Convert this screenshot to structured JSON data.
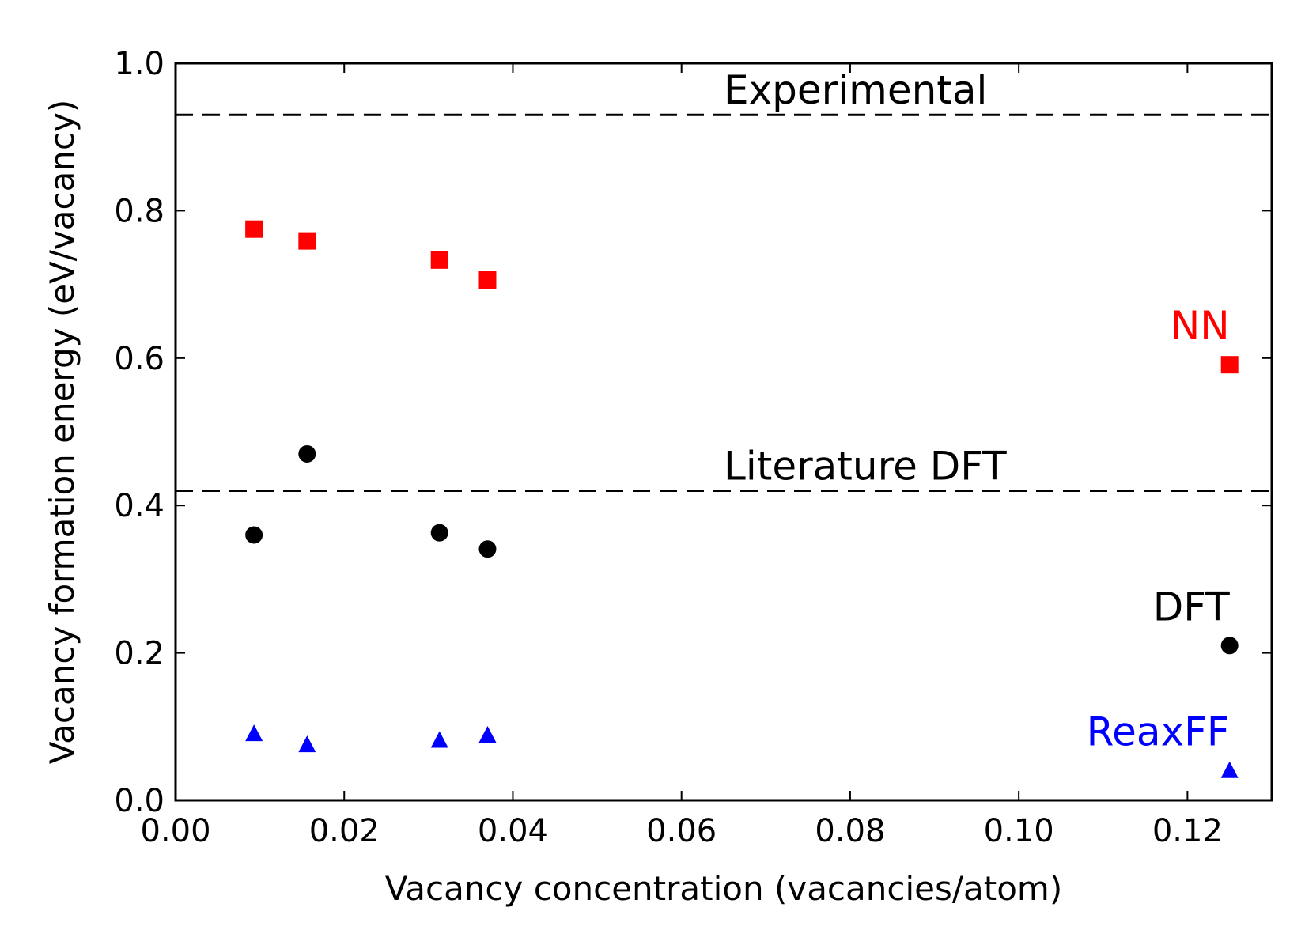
{
  "chart_data": {
    "type": "scatter",
    "xlabel": "Vacancy concentration (vacancies/atom)",
    "ylabel": "Vacancy formation energy (eV/vacancy)",
    "xlim": [
      0.0,
      0.13
    ],
    "ylim": [
      0.0,
      1.0
    ],
    "xticks": [
      "0.00",
      "0.02",
      "0.04",
      "0.06",
      "0.08",
      "0.10",
      "0.12"
    ],
    "yticks": [
      "0.0",
      "0.2",
      "0.4",
      "0.6",
      "0.8",
      "1.0"
    ],
    "grid": false,
    "series": [
      {
        "name": "NN",
        "color": "#ff0000",
        "marker": "square",
        "points": [
          {
            "x": 0.0093,
            "y": 0.775
          },
          {
            "x": 0.0156,
            "y": 0.759
          },
          {
            "x": 0.0313,
            "y": 0.733
          },
          {
            "x": 0.037,
            "y": 0.706
          },
          {
            "x": 0.125,
            "y": 0.591
          }
        ]
      },
      {
        "name": "DFT",
        "color": "#000000",
        "marker": "circle",
        "points": [
          {
            "x": 0.0093,
            "y": 0.36
          },
          {
            "x": 0.0156,
            "y": 0.47
          },
          {
            "x": 0.0313,
            "y": 0.363
          },
          {
            "x": 0.037,
            "y": 0.341
          },
          {
            "x": 0.125,
            "y": 0.21
          }
        ]
      },
      {
        "name": "ReaxFF",
        "color": "#0000ff",
        "marker": "triangle",
        "points": [
          {
            "x": 0.0093,
            "y": 0.09
          },
          {
            "x": 0.0156,
            "y": 0.075
          },
          {
            "x": 0.0313,
            "y": 0.081
          },
          {
            "x": 0.037,
            "y": 0.088
          },
          {
            "x": 0.125,
            "y": 0.04
          }
        ]
      }
    ],
    "reference_lines": [
      {
        "label": "Experimental",
        "y": 0.93,
        "color": "#000000",
        "style": "dashed"
      },
      {
        "label": "Literature DFT",
        "y": 0.42,
        "color": "#000000",
        "style": "dashed"
      }
    ]
  }
}
